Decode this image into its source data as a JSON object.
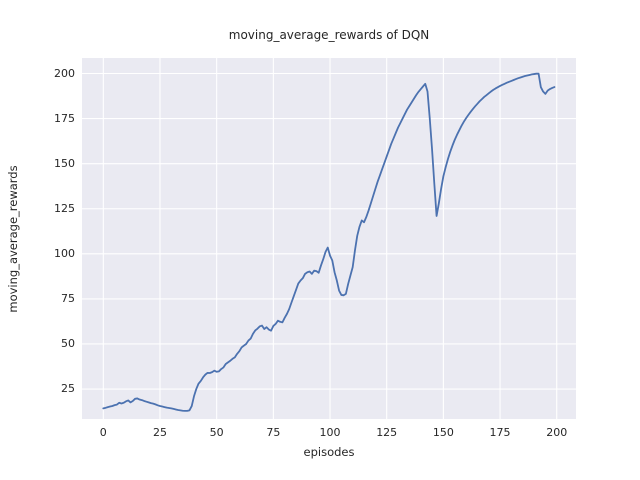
{
  "chart_data": {
    "type": "line",
    "title": "moving_average_rewards of DQN",
    "xlabel": "episodes",
    "ylabel": "moving_average_rewards",
    "legend": null,
    "grid": true,
    "style": {
      "line_color": "#4c72b0",
      "line_width": 1.8,
      "plot_bg": "#eaeaf2",
      "grid_color": "#ffffff",
      "text_color": "#262626",
      "figure_bg": "#ffffff"
    },
    "xlim": [
      -9.4,
      208.5
    ],
    "ylim": [
      8.4,
      208.6
    ],
    "xticks": [
      0,
      25,
      50,
      75,
      100,
      125,
      150,
      175,
      200
    ],
    "yticks": [
      25,
      50,
      75,
      100,
      125,
      150,
      175,
      200
    ],
    "series": [
      {
        "name": "moving_average_rewards",
        "x_start": 0,
        "x_step": 1,
        "y": [
          14.3,
          14.6,
          15.0,
          15.3,
          15.6,
          16.1,
          16.4,
          17.4,
          17.0,
          17.4,
          18.2,
          18.7,
          17.6,
          18.4,
          19.6,
          19.8,
          19.2,
          18.9,
          18.4,
          18.0,
          17.6,
          17.2,
          16.9,
          16.5,
          16.0,
          15.6,
          15.3,
          15.0,
          14.7,
          14.5,
          14.3,
          14.0,
          13.7,
          13.4,
          13.2,
          13.0,
          12.9,
          12.9,
          13.2,
          15.6,
          21.0,
          25.0,
          28.0,
          29.5,
          31.5,
          33.0,
          34.0,
          33.9,
          34.4,
          35.2,
          34.6,
          34.8,
          36.1,
          37.0,
          38.9,
          39.8,
          40.7,
          41.8,
          42.6,
          44.5,
          46.0,
          48.1,
          49.1,
          50.0,
          51.9,
          53.0,
          55.6,
          57.5,
          58.5,
          59.8,
          60.2,
          58.3,
          59.3,
          58.0,
          57.4,
          60.0,
          61.1,
          62.9,
          62.3,
          62.0,
          64.5,
          66.7,
          69.4,
          73.0,
          76.5,
          80.0,
          83.5,
          85.2,
          86.5,
          88.9,
          89.8,
          90.2,
          88.9,
          90.7,
          90.4,
          89.5,
          93.5,
          97.0,
          101.0,
          103.5,
          99.0,
          96.3,
          89.8,
          85.2,
          79.6,
          77.2,
          77.0,
          77.8,
          83.3,
          88.0,
          92.6,
          101.9,
          110.0,
          115.0,
          118.5,
          117.5,
          120.4,
          124.0,
          128.0,
          132.0,
          136.0,
          140.0,
          143.5,
          147.0,
          150.5,
          154.0,
          157.5,
          161.0,
          164.0,
          167.0,
          170.0,
          172.5,
          175.0,
          177.5,
          180.0,
          182.0,
          184.0,
          186.0,
          188.0,
          189.8,
          191.3,
          192.8,
          194.3,
          190.0,
          175.0,
          158.0,
          139.0,
          121.0,
          128.0,
          136.0,
          143.0,
          148.0,
          152.5,
          156.5,
          160.0,
          163.2,
          166.0,
          168.5,
          171.0,
          173.2,
          175.2,
          177.0,
          178.7,
          180.3,
          181.8,
          183.2,
          184.6,
          185.8,
          187.0,
          188.0,
          189.0,
          190.0,
          190.9,
          191.7,
          192.4,
          193.1,
          193.7,
          194.3,
          194.9,
          195.4,
          195.9,
          196.4,
          196.9,
          197.4,
          197.8,
          198.2,
          198.6,
          198.9,
          199.2,
          199.5,
          199.7,
          199.9,
          199.9,
          192.4,
          190.0,
          188.7,
          190.5,
          191.4,
          192.0,
          192.5
        ]
      }
    ]
  }
}
